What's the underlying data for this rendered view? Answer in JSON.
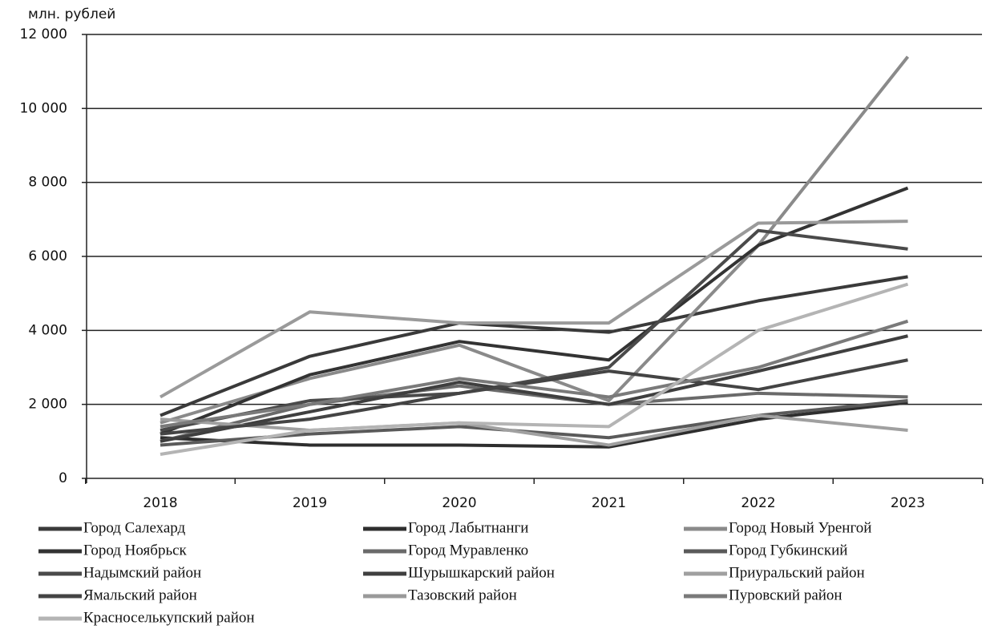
{
  "chart_data": {
    "type": "line",
    "y_label": "млн. рублей",
    "categories": [
      "2018",
      "2019",
      "2020",
      "2021",
      "2022",
      "2023"
    ],
    "ylim": [
      0,
      12000
    ],
    "yticks": [
      0,
      {
        "value": 2000,
        "label": "2 000"
      },
      {
        "value": 4000,
        "label": "4 000"
      },
      {
        "value": 6000,
        "label": "6 000"
      },
      {
        "value": 8000,
        "label": "8 000"
      },
      {
        "value": 10000,
        "label": "10 000"
      },
      {
        "value": 12000,
        "label": "12 000"
      }
    ],
    "grid": true,
    "legend": "bottom",
    "series": [
      {
        "name": "Город Салехард",
        "color": "#3a3a3a",
        "values": [
          1700,
          3300,
          4200,
          3950,
          4800,
          5450
        ]
      },
      {
        "name": "Город Лабытнанги",
        "color": "#2e2e2e",
        "values": [
          1100,
          900,
          900,
          850,
          1600,
          2050
        ]
      },
      {
        "name": "Город Новый Уренгой",
        "color": "#8a8a8a",
        "values": [
          1500,
          2700,
          3600,
          2100,
          6300,
          11400
        ]
      },
      {
        "name": "Город Ноябрьск",
        "color": "#333333",
        "values": [
          1200,
          2800,
          3700,
          3200,
          6300,
          7850
        ]
      },
      {
        "name": "Город Муравленко",
        "color": "#6a6a6a",
        "values": [
          1000,
          2000,
          2500,
          2000,
          2300,
          2200
        ]
      },
      {
        "name": "Город Губкинский",
        "color": "#5a5a5a",
        "values": [
          900,
          1200,
          1400,
          1100,
          1700,
          2100
        ]
      },
      {
        "name": "Надымский район",
        "color": "#4a4a4a",
        "values": [
          1300,
          2100,
          2300,
          3000,
          6700,
          6200
        ]
      },
      {
        "name": "Шурышкарский район",
        "color": "#3f3f3f",
        "values": [
          1000,
          1800,
          2600,
          2000,
          2900,
          3850
        ]
      },
      {
        "name": "Приуральский район",
        "color": "#a0a0a0",
        "values": [
          1600,
          1300,
          1500,
          900,
          1700,
          1300
        ]
      },
      {
        "name": "Ямальский район",
        "color": "#444444",
        "values": [
          1200,
          1600,
          2300,
          2900,
          2400,
          3200
        ]
      },
      {
        "name": "Тазовский район",
        "color": "#9a9a9a",
        "values": [
          2200,
          4500,
          4200,
          4200,
          6900,
          6950
        ]
      },
      {
        "name": "Пуровский район",
        "color": "#7a7a7a",
        "values": [
          1400,
          2000,
          2700,
          2200,
          3000,
          4250
        ]
      },
      {
        "name": "Красноселькупский район",
        "color": "#b4b4b4",
        "values": [
          650,
          1300,
          1500,
          1400,
          4000,
          5250
        ]
      }
    ]
  }
}
